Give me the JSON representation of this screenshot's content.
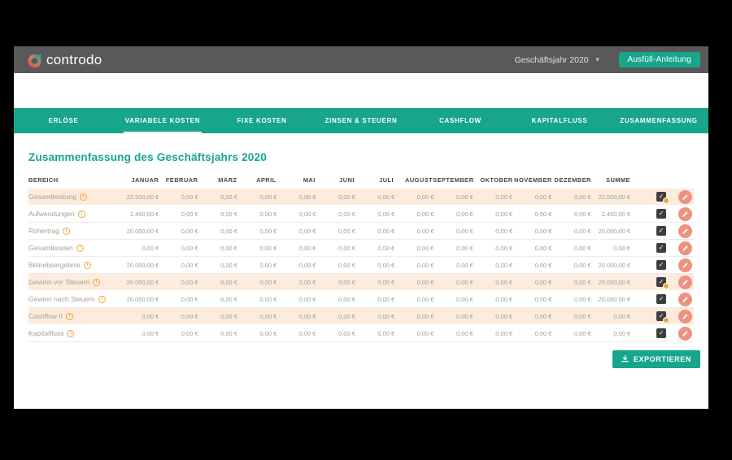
{
  "header": {
    "logo_text": "controdo",
    "year_selector": "Geschäftsjahr 2020",
    "caret_icon": "▼",
    "guide_button": "Ausfüll-Anleitung"
  },
  "nav": {
    "tabs": [
      {
        "label": "ERLÖSE",
        "active": false
      },
      {
        "label": "VARIABELE KOSTEN",
        "active": true
      },
      {
        "label": "FIXE KOSTEN",
        "active": false
      },
      {
        "label": "ZINSEN & STEUERN",
        "active": false
      },
      {
        "label": "CASHFLOW",
        "active": false
      },
      {
        "label": "KAPITALFLUSS",
        "active": false
      },
      {
        "label": "ZUSAMMENFASSUNG",
        "active": false
      }
    ]
  },
  "main": {
    "title": "Zusammenfassung des Geschäftsjahrs 2020"
  },
  "table": {
    "columns": [
      "BEREICH",
      "JANUAR",
      "FEBRUAR",
      "MÄRZ",
      "APRIL",
      "MAI",
      "JUNI",
      "JULI",
      "AUGUST",
      "SEPTEMBER",
      "OKTOBER",
      "NOVEMBER",
      "DEZEMBER",
      "SUMME"
    ],
    "rows": [
      {
        "label": "Gesamtleistung",
        "values": [
          "22.500,00 €",
          "0,00 €",
          "0,00 €",
          "0,00 €",
          "0,00 €",
          "0,00 €",
          "0,00 €",
          "0,00 €",
          "0,00 €",
          "0,00 €",
          "0,00 €",
          "0,00 €",
          "22.500,00 €"
        ],
        "highlighted": true,
        "checked": true,
        "badge": true
      },
      {
        "label": "Aufwendungen",
        "values": [
          "2.450,00 €",
          "0,00 €",
          "0,00 €",
          "0,00 €",
          "0,00 €",
          "0,00 €",
          "0,00 €",
          "0,00 €",
          "0,00 €",
          "0,00 €",
          "0,00 €",
          "0,00 €",
          "2.450,00 €"
        ],
        "highlighted": false,
        "checked": true,
        "badge": false
      },
      {
        "label": "Rohertrag",
        "values": [
          "20.050,00 €",
          "0,00 €",
          "0,00 €",
          "0,00 €",
          "0,00 €",
          "0,00 €",
          "0,00 €",
          "0,00 €",
          "0,00 €",
          "0,00 €",
          "0,00 €",
          "0,00 €",
          "20.050,00 €"
        ],
        "highlighted": false,
        "checked": true,
        "badge": false
      },
      {
        "label": "Gesamtkosten",
        "values": [
          "0,00 €",
          "0,00 €",
          "0,00 €",
          "0,00 €",
          "0,00 €",
          "0,00 €",
          "0,00 €",
          "0,00 €",
          "0,00 €",
          "0,00 €",
          "0,00 €",
          "0,00 €",
          "0,00 €"
        ],
        "highlighted": false,
        "checked": true,
        "badge": false
      },
      {
        "label": "Betriebsergebnis",
        "values": [
          "20.050,00 €",
          "0,00 €",
          "0,00 €",
          "0,00 €",
          "0,00 €",
          "0,00 €",
          "0,00 €",
          "0,00 €",
          "0,00 €",
          "0,00 €",
          "0,00 €",
          "0,00 €",
          "20.050,00 €"
        ],
        "highlighted": false,
        "checked": true,
        "badge": false
      },
      {
        "label": "Gewinn vor Steuern",
        "values": [
          "20.050,00 €",
          "0,00 €",
          "0,00 €",
          "0,00 €",
          "0,00 €",
          "0,00 €",
          "0,00 €",
          "0,00 €",
          "0,00 €",
          "0,00 €",
          "0,00 €",
          "0,00 €",
          "20.050,00 €"
        ],
        "highlighted": true,
        "checked": true,
        "badge": true
      },
      {
        "label": "Gewinn nach Steuern",
        "values": [
          "20.050,00 €",
          "0,00 €",
          "0,00 €",
          "0,00 €",
          "0,00 €",
          "0,00 €",
          "0,00 €",
          "0,00 €",
          "0,00 €",
          "0,00 €",
          "0,00 €",
          "0,00 €",
          "20.050,00 €"
        ],
        "highlighted": false,
        "checked": true,
        "badge": false
      },
      {
        "label": "Cashflow II",
        "values": [
          "0,00 €",
          "0,00 €",
          "0,00 €",
          "0,00 €",
          "0,00 €",
          "0,00 €",
          "0,00 €",
          "0,00 €",
          "0,00 €",
          "0,00 €",
          "0,00 €",
          "0,00 €",
          "0,00 €"
        ],
        "highlighted": true,
        "checked": true,
        "badge": true
      },
      {
        "label": "Kapitalfluss",
        "values": [
          "0,00 €",
          "0,00 €",
          "0,00 €",
          "0,00 €",
          "0,00 €",
          "0,00 €",
          "0,00 €",
          "0,00 €",
          "0,00 €",
          "0,00 €",
          "0,00 €",
          "0,00 €",
          "0,00 €"
        ],
        "highlighted": false,
        "checked": true,
        "badge": false
      }
    ],
    "info_icon_glyph": "i",
    "check_glyph": "✓"
  },
  "footer": {
    "export_button": "EXPORTIEREN"
  },
  "colors": {
    "green": "#17a68b",
    "headerbg": "#59595b",
    "peach": "#fcecdd",
    "coral": "#ef9181",
    "orange": "#f2a43b"
  }
}
